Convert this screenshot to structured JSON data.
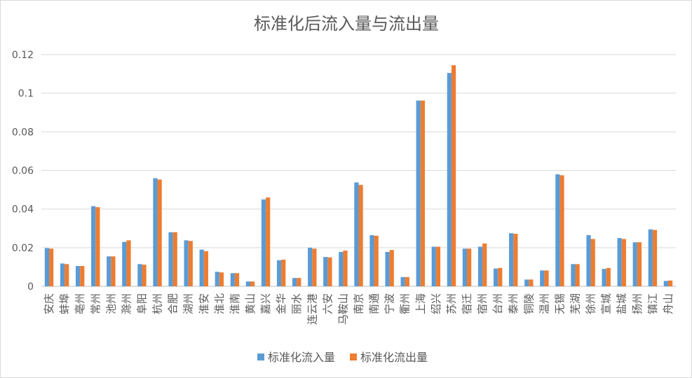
{
  "chart_data": {
    "type": "bar",
    "title": "标准化后流入量与流出量",
    "xlabel": "",
    "ylabel": "",
    "ylim": [
      0,
      0.12
    ],
    "yticks": [
      "0",
      "0.02",
      "0.04",
      "0.06",
      "0.08",
      "0.1",
      "0.12"
    ],
    "grid": true,
    "legend_position": "bottom",
    "categories": [
      "安庆",
      "蚌埠",
      "亳州",
      "常州",
      "池州",
      "滁州",
      "阜阳",
      "杭州",
      "合肥",
      "湖州",
      "淮安",
      "淮北",
      "淮南",
      "黄山",
      "嘉兴",
      "金华",
      "丽水",
      "连云港",
      "六安",
      "马鞍山",
      "南京",
      "南通",
      "宁波",
      "衢州",
      "上海",
      "绍兴",
      "苏州",
      "宿迁",
      "宿州",
      "台州",
      "泰州",
      "铜陵",
      "温州",
      "无锡",
      "芜湖",
      "徐州",
      "宣城",
      "盐城",
      "扬州",
      "镇江",
      "舟山"
    ],
    "series": [
      {
        "name": "标准化流入量",
        "color": "#5b9bd5",
        "values": [
          0.0198,
          0.0118,
          0.0105,
          0.0415,
          0.0155,
          0.023,
          0.0115,
          0.056,
          0.028,
          0.0238,
          0.019,
          0.0075,
          0.0068,
          0.0025,
          0.045,
          0.0135,
          0.0043,
          0.02,
          0.0152,
          0.0178,
          0.0538,
          0.0265,
          0.0178,
          0.0048,
          0.0962,
          0.0205,
          0.1105,
          0.0195,
          0.0205,
          0.0092,
          0.0275,
          0.0035,
          0.0082,
          0.058,
          0.0115,
          0.0265,
          0.009,
          0.025,
          0.0228,
          0.0295,
          0.0028
        ]
      },
      {
        "name": "标准化流出量",
        "color": "#ed7d31",
        "values": [
          0.0195,
          0.0115,
          0.0105,
          0.041,
          0.0155,
          0.0238,
          0.0112,
          0.0553,
          0.028,
          0.0235,
          0.0182,
          0.0072,
          0.0068,
          0.0025,
          0.046,
          0.0138,
          0.0043,
          0.0195,
          0.015,
          0.0185,
          0.0525,
          0.0262,
          0.0188,
          0.0048,
          0.0962,
          0.0205,
          0.1145,
          0.0195,
          0.0222,
          0.0095,
          0.0272,
          0.0035,
          0.0082,
          0.0575,
          0.0115,
          0.0245,
          0.0095,
          0.0245,
          0.0228,
          0.0292,
          0.003
        ]
      }
    ]
  }
}
